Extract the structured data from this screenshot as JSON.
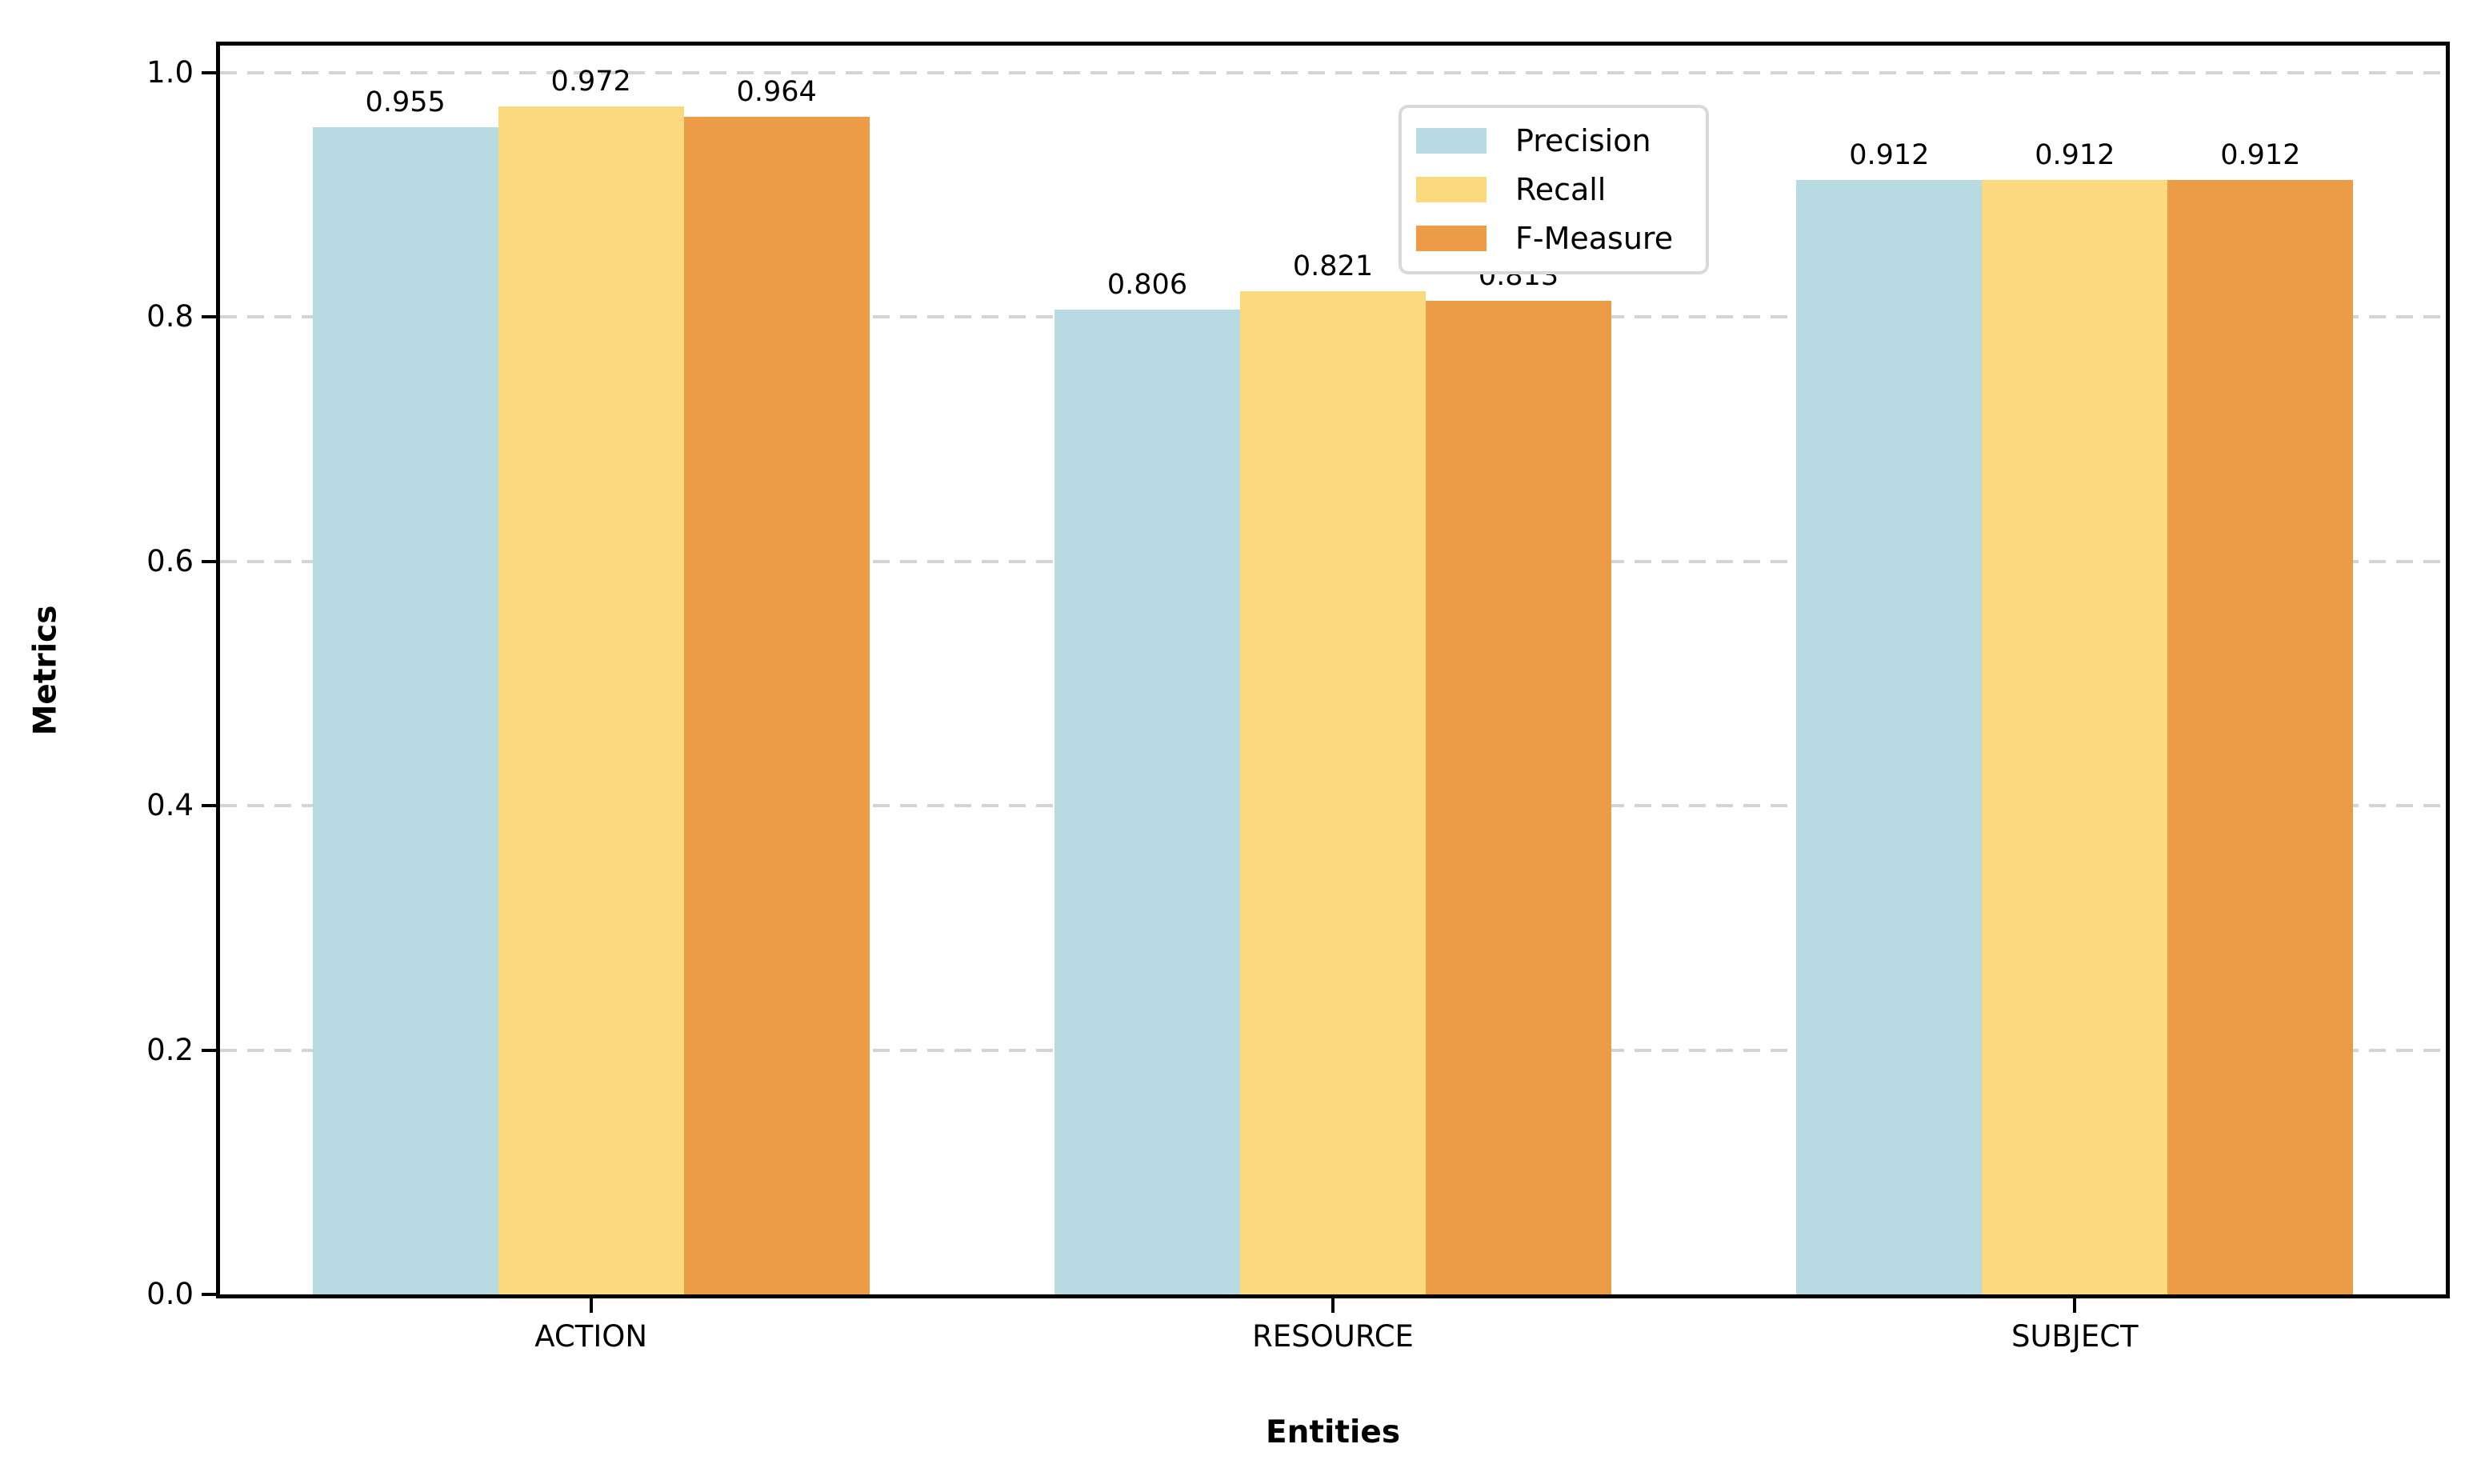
{
  "chart_data": {
    "type": "bar",
    "title": "",
    "xlabel": "Entities",
    "ylabel": "Metrics",
    "categories": [
      "ACTION",
      "RESOURCE",
      "SUBJECT"
    ],
    "series": [
      {
        "name": "Precision",
        "color": "#b7dae3",
        "values": [
          0.955,
          0.806,
          0.912
        ]
      },
      {
        "name": "Recall",
        "color": "#fbd97e",
        "values": [
          0.972,
          0.821,
          0.912
        ]
      },
      {
        "name": "F-Measure",
        "color": "#ec9c46",
        "values": [
          0.964,
          0.813,
          0.912
        ]
      }
    ],
    "value_label_decimals": 3,
    "yticks": [
      0.0,
      0.2,
      0.4,
      0.6,
      0.8,
      1.0
    ],
    "ytick_labels": [
      "0.0",
      "0.2",
      "0.4",
      "0.6",
      "0.8",
      "1.0"
    ],
    "ylim": [
      0,
      1.022
    ],
    "grid": "horizontal-dashed",
    "gridline_color": "#d4d4d4",
    "spine_color": "#000000",
    "background_color": "#ffffff",
    "legend_position": "upper center",
    "legend": [
      "Precision",
      "Recall",
      "F-Measure"
    ]
  }
}
